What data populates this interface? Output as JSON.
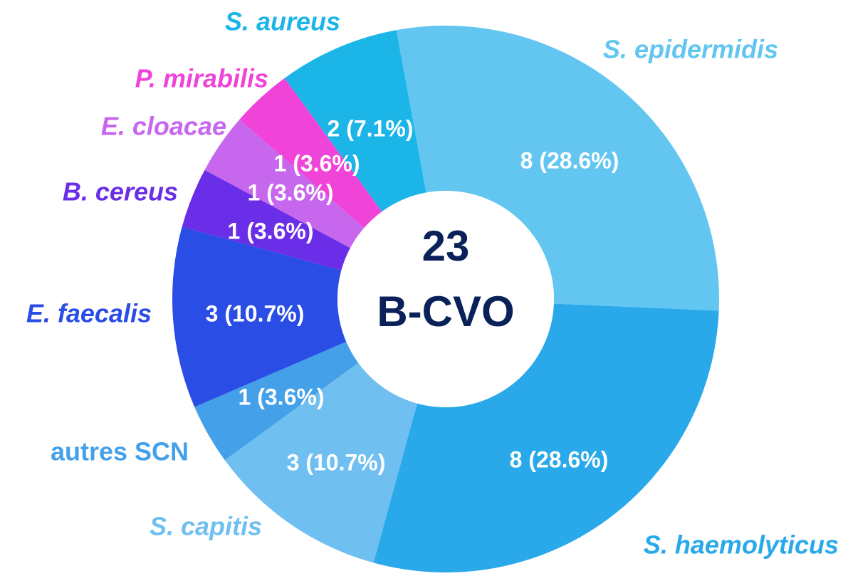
{
  "chart_data": {
    "type": "donut",
    "categories": [
      "S. epidermidis",
      "S. haemolyticus",
      "S. capitis",
      "autres SCN",
      "E. faecalis",
      "B. cereus",
      "E. cloacae",
      "P. mirabilis",
      "S. aureus"
    ],
    "values": [
      8,
      8,
      3,
      1,
      3,
      1,
      1,
      1,
      2
    ],
    "value_labels": [
      "8 (28.6%)",
      "8 (28.6%)",
      "3 (10.7%)",
      "1 (3.6%)",
      "3 (10.7%)",
      "1 (3.6%)",
      "1 (3.6%)",
      "1 (3.6%)",
      "2 (7.1%)"
    ],
    "colors": [
      "#62c6f0",
      "#29a9ea",
      "#6fbff0",
      "#44a0e8",
      "#2a4de6",
      "#6a2ee8",
      "#c767ee",
      "#f044d8",
      "#1cb5e8"
    ],
    "center_text": [
      "23",
      "B-CVO"
    ]
  }
}
